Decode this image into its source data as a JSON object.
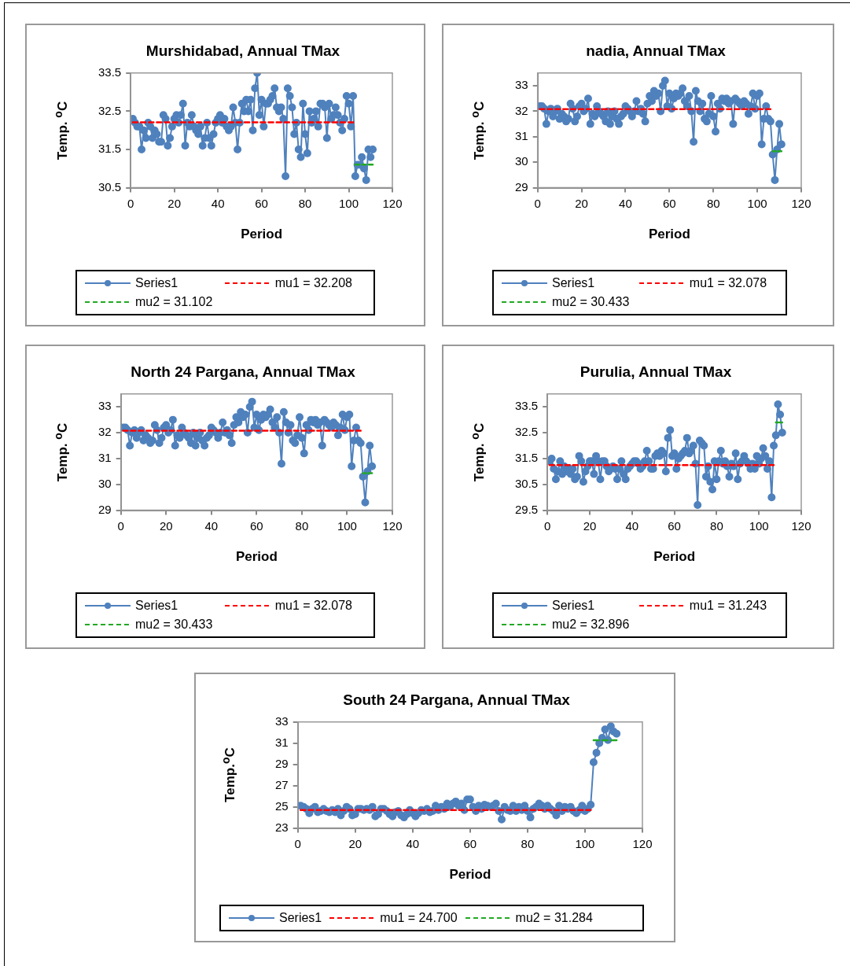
{
  "chart_data": [
    {
      "type": "line",
      "title": "Murshidabad, Annual TMax",
      "xlabel": "Period",
      "ylabel": "Temp. $^{o}$C",
      "xlim": [
        0,
        120
      ],
      "xticks": [
        0,
        20,
        40,
        60,
        80,
        100,
        120
      ],
      "ylim": [
        30.5,
        33.5
      ],
      "yticks": [
        30.5,
        31.5,
        32.5,
        33.5
      ],
      "grid": false,
      "legend": "bottom",
      "marker": "circle",
      "x": [
        1,
        2,
        3,
        4,
        5,
        6,
        7,
        8,
        9,
        10,
        11,
        12,
        13,
        14,
        15,
        16,
        17,
        18,
        19,
        20,
        21,
        22,
        23,
        24,
        25,
        26,
        27,
        28,
        29,
        30,
        31,
        32,
        33,
        34,
        35,
        36,
        37,
        38,
        39,
        40,
        41,
        42,
        43,
        44,
        45,
        46,
        47,
        48,
        49,
        50,
        51,
        52,
        53,
        54,
        55,
        56,
        57,
        58,
        59,
        60,
        61,
        62,
        63,
        64,
        65,
        66,
        67,
        68,
        69,
        70,
        71,
        72,
        73,
        74,
        75,
        76,
        77,
        78,
        79,
        80,
        81,
        82,
        83,
        84,
        85,
        86,
        87,
        88,
        89,
        90,
        91,
        92,
        93,
        94,
        95,
        96,
        97,
        98,
        99,
        100,
        101,
        102,
        103,
        104,
        105,
        106,
        107,
        108,
        109,
        110,
        111
      ],
      "series": [
        {
          "name": "Series1",
          "color": "#4f81bd",
          "values": [
            32.3,
            32.2,
            32.1,
            32.1,
            31.5,
            32.0,
            31.8,
            32.2,
            32.1,
            31.8,
            32.0,
            31.9,
            31.7,
            31.7,
            32.4,
            32.3,
            31.6,
            31.8,
            32.1,
            32.3,
            32.4,
            32.2,
            32.4,
            32.7,
            31.6,
            32.2,
            32.1,
            32.4,
            32.1,
            32.0,
            31.9,
            32.1,
            31.6,
            31.8,
            32.2,
            31.8,
            31.6,
            31.9,
            32.2,
            32.3,
            32.4,
            32.2,
            32.3,
            32.1,
            32.0,
            32.1,
            32.6,
            32.2,
            31.5,
            32.2,
            32.7,
            32.5,
            32.8,
            32.5,
            32.8,
            32.0,
            33.1,
            33.5,
            32.4,
            32.8,
            32.1,
            32.7,
            32.7,
            32.8,
            32.9,
            33.1,
            32.6,
            32.5,
            32.6,
            32.3,
            30.8,
            33.1,
            32.9,
            32.6,
            31.9,
            32.2,
            31.5,
            31.3,
            32.7,
            31.9,
            31.4,
            32.5,
            32.2,
            32.3,
            32.5,
            32.1,
            32.7,
            32.7,
            32.6,
            31.8,
            32.7,
            32.3,
            32.4,
            32.6,
            32.4,
            32.2,
            32.0,
            32.3,
            32.9,
            32.7,
            32.1,
            32.9,
            30.8,
            31.1,
            31.1,
            31.3,
            31.0,
            30.7,
            31.5,
            31.3,
            31.5
          ]
        },
        {
          "name": "mu1 = 32.208",
          "color": "#ff0000",
          "x": [
            1,
            102
          ],
          "values": [
            32.208,
            32.208
          ],
          "line_style": "dashed",
          "marker": "none"
        },
        {
          "name": "mu2 = 31.102",
          "color": "#22aa22",
          "x": [
            103,
            111
          ],
          "values": [
            31.102,
            31.102
          ],
          "line_style": "dashed",
          "marker": "none"
        }
      ]
    },
    {
      "type": "line",
      "title": "nadia, Annual TMax",
      "xlabel": "Period",
      "ylabel": "Temp. $^{o}$C",
      "xlim": [
        0,
        120
      ],
      "xticks": [
        0,
        20,
        40,
        60,
        80,
        100,
        120
      ],
      "ylim": [
        29,
        33.5
      ],
      "yticks": [
        29,
        30,
        31,
        32,
        33
      ],
      "grid": false,
      "legend": "bottom",
      "marker": "circle",
      "x": [
        1,
        2,
        3,
        4,
        5,
        6,
        7,
        8,
        9,
        10,
        11,
        12,
        13,
        14,
        15,
        16,
        17,
        18,
        19,
        20,
        21,
        22,
        23,
        24,
        25,
        26,
        27,
        28,
        29,
        30,
        31,
        32,
        33,
        34,
        35,
        36,
        37,
        38,
        39,
        40,
        41,
        42,
        43,
        44,
        45,
        46,
        47,
        48,
        49,
        50,
        51,
        52,
        53,
        54,
        55,
        56,
        57,
        58,
        59,
        60,
        61,
        62,
        63,
        64,
        65,
        66,
        67,
        68,
        69,
        70,
        71,
        72,
        73,
        74,
        75,
        76,
        77,
        78,
        79,
        80,
        81,
        82,
        83,
        84,
        85,
        86,
        87,
        88,
        89,
        90,
        91,
        92,
        93,
        94,
        95,
        96,
        97,
        98,
        99,
        100,
        101,
        102,
        103,
        104,
        105,
        106,
        107,
        108,
        109,
        110,
        111
      ],
      "series": [
        {
          "name": "Series1",
          "color": "#4f81bd",
          "values": [
            32.2,
            32.2,
            32.1,
            31.5,
            32.0,
            32.1,
            31.8,
            32.0,
            32.1,
            31.7,
            31.9,
            31.8,
            31.6,
            31.7,
            32.3,
            32.1,
            31.6,
            31.8,
            32.2,
            32.3,
            32.0,
            32.1,
            32.5,
            31.5,
            31.9,
            31.8,
            32.2,
            32.0,
            31.9,
            31.8,
            31.6,
            32.0,
            31.5,
            31.8,
            32.0,
            31.7,
            31.5,
            31.8,
            31.9,
            32.2,
            32.1,
            32.0,
            31.8,
            32.0,
            32.4,
            32.0,
            32.1,
            31.9,
            31.6,
            32.3,
            32.6,
            32.4,
            32.8,
            32.6,
            32.7,
            32.0,
            33.0,
            33.2,
            32.2,
            32.7,
            32.1,
            32.5,
            32.7,
            32.6,
            32.7,
            32.9,
            32.4,
            32.2,
            32.6,
            32.0,
            30.8,
            32.8,
            32.4,
            32.0,
            32.3,
            31.7,
            31.6,
            31.9,
            32.6,
            31.8,
            31.2,
            32.3,
            32.1,
            32.5,
            32.4,
            32.5,
            32.3,
            32.4,
            31.5,
            32.5,
            32.4,
            32.3,
            32.2,
            32.4,
            32.3,
            31.9,
            32.2,
            32.7,
            32.1,
            32.6,
            32.7,
            30.7,
            31.7,
            32.2,
            31.7,
            31.6,
            30.3,
            29.3,
            30.5,
            31.5,
            30.7
          ]
        },
        {
          "name": "mu1 = 32.078",
          "color": "#ff0000",
          "x": [
            1,
            106
          ],
          "values": [
            32.078,
            32.078
          ],
          "line_style": "dashed",
          "marker": "none"
        },
        {
          "name": "mu2 = 30.433",
          "color": "#22aa22",
          "x": [
            107,
            111
          ],
          "values": [
            30.433,
            30.433
          ],
          "line_style": "dashed",
          "marker": "none"
        }
      ]
    },
    {
      "type": "line",
      "title": "North 24 Pargana, Annual TMax",
      "xlabel": "Period",
      "ylabel": "Temp. $^{o}$C",
      "xlim": [
        0,
        120
      ],
      "xticks": [
        0,
        20,
        40,
        60,
        80,
        100,
        120
      ],
      "ylim": [
        29,
        33.5
      ],
      "yticks": [
        29,
        30,
        31,
        32,
        33
      ],
      "grid": false,
      "legend": "bottom",
      "marker": "circle",
      "x": [
        1,
        2,
        3,
        4,
        5,
        6,
        7,
        8,
        9,
        10,
        11,
        12,
        13,
        14,
        15,
        16,
        17,
        18,
        19,
        20,
        21,
        22,
        23,
        24,
        25,
        26,
        27,
        28,
        29,
        30,
        31,
        32,
        33,
        34,
        35,
        36,
        37,
        38,
        39,
        40,
        41,
        42,
        43,
        44,
        45,
        46,
        47,
        48,
        49,
        50,
        51,
        52,
        53,
        54,
        55,
        56,
        57,
        58,
        59,
        60,
        61,
        62,
        63,
        64,
        65,
        66,
        67,
        68,
        69,
        70,
        71,
        72,
        73,
        74,
        75,
        76,
        77,
        78,
        79,
        80,
        81,
        82,
        83,
        84,
        85,
        86,
        87,
        88,
        89,
        90,
        91,
        92,
        93,
        94,
        95,
        96,
        97,
        98,
        99,
        100,
        101,
        102,
        103,
        104,
        105,
        106,
        107,
        108,
        109,
        110,
        111
      ],
      "series": [
        {
          "name": "Series1",
          "color": "#4f81bd",
          "values": [
            32.2,
            32.2,
            32.1,
            31.5,
            32.0,
            32.1,
            31.8,
            32.0,
            32.1,
            31.7,
            31.9,
            31.8,
            31.6,
            31.7,
            32.3,
            32.1,
            31.6,
            31.8,
            32.2,
            32.3,
            32.0,
            32.1,
            32.5,
            31.5,
            31.9,
            31.8,
            32.2,
            32.0,
            31.9,
            31.8,
            31.6,
            32.0,
            31.5,
            31.8,
            32.0,
            31.7,
            31.5,
            31.8,
            31.9,
            32.2,
            32.1,
            32.0,
            31.8,
            32.0,
            32.4,
            32.0,
            32.1,
            31.9,
            31.6,
            32.3,
            32.6,
            32.4,
            32.8,
            32.6,
            32.7,
            32.0,
            33.0,
            33.2,
            32.2,
            32.7,
            32.1,
            32.5,
            32.7,
            32.6,
            32.7,
            32.9,
            32.4,
            32.2,
            32.6,
            32.0,
            30.8,
            32.8,
            32.4,
            32.0,
            32.3,
            31.7,
            31.6,
            31.9,
            32.6,
            31.8,
            31.2,
            32.3,
            32.1,
            32.5,
            32.4,
            32.5,
            32.3,
            32.4,
            31.5,
            32.5,
            32.4,
            32.3,
            32.2,
            32.4,
            32.3,
            31.9,
            32.2,
            32.7,
            32.1,
            32.6,
            32.7,
            30.7,
            31.7,
            32.2,
            31.7,
            31.6,
            30.3,
            29.3,
            30.5,
            31.5,
            30.7
          ]
        },
        {
          "name": "mu1 = 32.078",
          "color": "#ff0000",
          "x": [
            1,
            106
          ],
          "values": [
            32.078,
            32.078
          ],
          "line_style": "dashed",
          "marker": "none"
        },
        {
          "name": "mu2 = 30.433",
          "color": "#22aa22",
          "x": [
            107,
            111
          ],
          "values": [
            30.433,
            30.433
          ],
          "line_style": "dashed",
          "marker": "none"
        }
      ]
    },
    {
      "type": "line",
      "title": "Purulia, Annual TMax",
      "xlabel": "Period",
      "ylabel": "Temp. $^{o}$C",
      "xlim": [
        0,
        120
      ],
      "xticks": [
        0,
        20,
        40,
        60,
        80,
        100,
        120
      ],
      "ylim": [
        29.5,
        34
      ],
      "yticks": [
        29.5,
        30.5,
        31.5,
        32.5,
        33.5
      ],
      "grid": false,
      "legend": "bottom",
      "marker": "circle",
      "x": [
        1,
        2,
        3,
        4,
        5,
        6,
        7,
        8,
        9,
        10,
        11,
        12,
        13,
        14,
        15,
        16,
        17,
        18,
        19,
        20,
        21,
        22,
        23,
        24,
        25,
        26,
        27,
        28,
        29,
        30,
        31,
        32,
        33,
        34,
        35,
        36,
        37,
        38,
        39,
        40,
        41,
        42,
        43,
        44,
        45,
        46,
        47,
        48,
        49,
        50,
        51,
        52,
        53,
        54,
        55,
        56,
        57,
        58,
        59,
        60,
        61,
        62,
        63,
        64,
        65,
        66,
        67,
        68,
        69,
        70,
        71,
        72,
        73,
        74,
        75,
        76,
        77,
        78,
        79,
        80,
        81,
        82,
        83,
        84,
        85,
        86,
        87,
        88,
        89,
        90,
        91,
        92,
        93,
        94,
        95,
        96,
        97,
        98,
        99,
        100,
        101,
        102,
        103,
        104,
        105,
        106,
        107,
        108,
        109,
        110,
        111
      ],
      "series": [
        {
          "name": "Series1",
          "color": "#4f81bd",
          "values": [
            31.4,
            31.5,
            31.1,
            30.7,
            31.0,
            31.4,
            30.9,
            31.2,
            31.0,
            31.1,
            30.9,
            31.1,
            30.7,
            30.8,
            31.6,
            31.4,
            30.6,
            31.0,
            31.2,
            31.4,
            31.4,
            30.9,
            31.6,
            31.4,
            30.7,
            31.4,
            31.4,
            31.2,
            31.0,
            31.1,
            31.2,
            31.1,
            30.7,
            31.1,
            31.4,
            30.9,
            30.7,
            31.1,
            31.2,
            31.3,
            31.4,
            31.4,
            31.3,
            31.1,
            31.2,
            31.4,
            31.8,
            31.4,
            31.1,
            31.1,
            31.6,
            31.7,
            31.6,
            31.8,
            31.7,
            31.0,
            32.3,
            32.6,
            31.6,
            31.7,
            31.1,
            31.5,
            31.6,
            31.7,
            31.8,
            32.3,
            31.7,
            31.8,
            32.0,
            31.3,
            29.7,
            32.2,
            32.1,
            32.0,
            30.8,
            31.2,
            30.6,
            30.3,
            31.4,
            30.7,
            31.4,
            31.8,
            31.3,
            31.4,
            31.2,
            30.8,
            31.3,
            31.2,
            31.7,
            30.7,
            31.3,
            31.4,
            31.6,
            31.4,
            31.3,
            31.1,
            31.3,
            31.1,
            31.6,
            31.3,
            31.5,
            31.9,
            31.6,
            31.1,
            31.4,
            30.0,
            32.0,
            32.4,
            33.6,
            33.2,
            32.5
          ]
        },
        {
          "name": "mu1 = 31.243",
          "color": "#ff0000",
          "x": [
            1,
            107
          ],
          "values": [
            31.243,
            31.243
          ],
          "line_style": "dashed",
          "marker": "none"
        },
        {
          "name": "mu2 = 32.896",
          "color": "#22aa22",
          "x": [
            108,
            111
          ],
          "values": [
            32.896,
            32.896
          ],
          "line_style": "dashed",
          "marker": "none"
        }
      ]
    },
    {
      "type": "line",
      "title": "South 24 Pargana, Annual TMax",
      "xlabel": "Period",
      "ylabel": "Temp.$^{o}$C",
      "xlim": [
        0,
        120
      ],
      "xticks": [
        0,
        20,
        40,
        60,
        80,
        100,
        120
      ],
      "ylim": [
        23,
        33
      ],
      "yticks": [
        23,
        25,
        27,
        29,
        31,
        33
      ],
      "grid": false,
      "legend": "bottom",
      "marker": "circle",
      "x": [
        1,
        2,
        3,
        4,
        5,
        6,
        7,
        8,
        9,
        10,
        11,
        12,
        13,
        14,
        15,
        16,
        17,
        18,
        19,
        20,
        21,
        22,
        23,
        24,
        25,
        26,
        27,
        28,
        29,
        30,
        31,
        32,
        33,
        34,
        35,
        36,
        37,
        38,
        39,
        40,
        41,
        42,
        43,
        44,
        45,
        46,
        47,
        48,
        49,
        50,
        51,
        52,
        53,
        54,
        55,
        56,
        57,
        58,
        59,
        60,
        61,
        62,
        63,
        64,
        65,
        66,
        67,
        68,
        69,
        70,
        71,
        72,
        73,
        74,
        75,
        76,
        77,
        78,
        79,
        80,
        81,
        82,
        83,
        84,
        85,
        86,
        87,
        88,
        89,
        90,
        91,
        92,
        93,
        94,
        95,
        96,
        97,
        98,
        99,
        100,
        101,
        102,
        103,
        104,
        105,
        106,
        107,
        108,
        109,
        110,
        111
      ],
      "series": [
        {
          "name": "Series1",
          "color": "#4f81bd",
          "values": [
            25.1,
            25.0,
            24.8,
            24.4,
            24.8,
            25.0,
            24.5,
            24.6,
            24.8,
            24.6,
            24.5,
            24.7,
            24.5,
            24.8,
            24.2,
            24.6,
            25.0,
            24.8,
            24.2,
            24.3,
            24.8,
            24.8,
            24.7,
            24.8,
            24.7,
            25.0,
            24.1,
            24.3,
            24.8,
            24.8,
            24.6,
            24.3,
            24.1,
            24.5,
            24.6,
            24.2,
            24.0,
            24.3,
            24.7,
            24.4,
            24.1,
            24.4,
            24.7,
            24.6,
            24.8,
            24.5,
            24.6,
            25.1,
            24.7,
            25.0,
            24.8,
            25.3,
            25.0,
            25.3,
            25.5,
            25.1,
            25.3,
            24.7,
            25.7,
            25.7,
            25.0,
            24.6,
            25.1,
            24.8,
            25.2,
            25.1,
            25.0,
            25.1,
            25.3,
            24.6,
            23.8,
            25.0,
            24.7,
            24.6,
            25.1,
            24.6,
            25.0,
            24.7,
            25.1,
            24.6,
            24.0,
            24.8,
            25.0,
            25.3,
            25.1,
            24.8,
            25.1,
            24.8,
            24.6,
            24.2,
            25.1,
            24.6,
            25.0,
            24.8,
            25.0,
            24.6,
            24.4,
            24.7,
            25.1,
            24.6,
            24.8,
            25.2,
            29.2,
            30.1,
            31.0,
            31.5,
            32.3,
            31.3,
            32.6,
            32.1,
            31.9
          ]
        },
        {
          "name": "mu1 = 24.700",
          "color": "#ff0000",
          "x": [
            1,
            102
          ],
          "values": [
            24.7,
            24.7
          ],
          "line_style": "dashed",
          "marker": "none"
        },
        {
          "name": "mu2 = 31.284",
          "color": "#22aa22",
          "x": [
            103,
            111
          ],
          "values": [
            31.284,
            31.284
          ],
          "line_style": "dashed",
          "marker": "none"
        }
      ]
    }
  ]
}
